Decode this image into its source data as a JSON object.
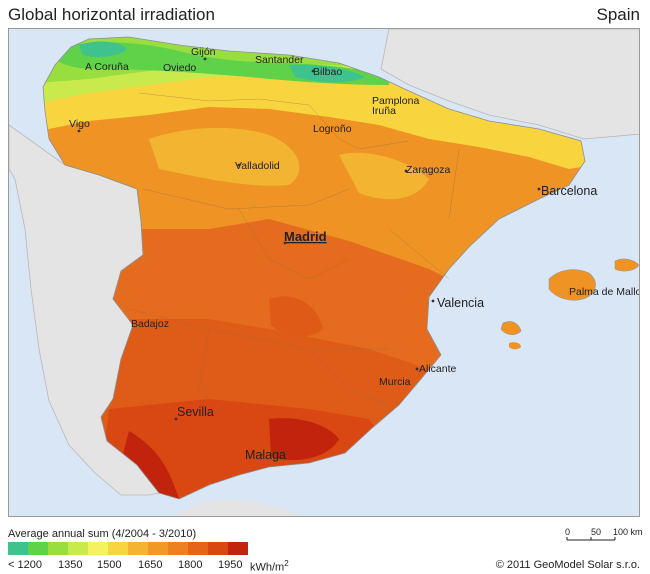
{
  "header": {
    "title": "Global horizontal irradiation",
    "country": "Spain"
  },
  "cities": {
    "gijon": "Gijón",
    "santander": "Santander",
    "bilbao": "Bilbao",
    "acoruna": "A Coruña",
    "oviedo": "Oviedo",
    "vigo": "Vigo",
    "pamplona": "Pamplona",
    "iruna": "Iruña",
    "logrono": "Logroño",
    "valladolid": "Valladolid",
    "zaragoza": "Zaragoza",
    "barcelona": "Barcelona",
    "madrid": "Madrid",
    "valencia": "Valencia",
    "palma": "Palma de Mallorca",
    "badajoz": "Badajoz",
    "alicante": "Alicante",
    "murcia": "Murcia",
    "sevilla": "Sevilla",
    "malaga": "Malaga"
  },
  "legend": {
    "caption": "Average annual sum (4/2004 - 3/2010)",
    "colors": [
      "#3ec28e",
      "#5fd24a",
      "#98de3f",
      "#c9ea4d",
      "#f4f25e",
      "#f8d43f",
      "#f3b431",
      "#ef9a24",
      "#eb8120",
      "#e5641a",
      "#d94712",
      "#c1230c"
    ],
    "ticks": [
      "< 1200",
      "1350",
      "1500",
      "1650",
      "1800",
      "1950"
    ],
    "unit": "kWh/m",
    "unit_sup": "2"
  },
  "scale": {
    "zero": "0",
    "mid": "50",
    "end": "100 km"
  },
  "copyright": "© 2011 GeoModel Solar s.r.o."
}
